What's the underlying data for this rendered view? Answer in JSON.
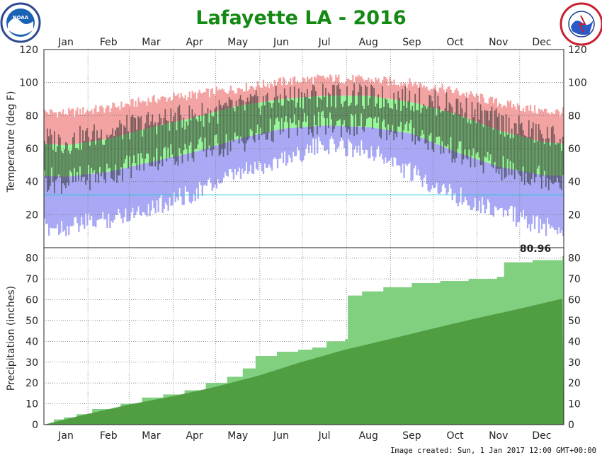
{
  "title": "Lafayette LA - 2016",
  "credit": "Image created: Sun, 1 Jan 2017 12:00 GMT+00:00",
  "logos": {
    "left": {
      "icon": "noaa-logo",
      "text": "NOAA"
    },
    "right": {
      "icon": "nws-logo",
      "text": "NATIONAL WEATHER SERVICE"
    }
  },
  "colors": {
    "record_high": "#f4a3a3",
    "normal_band": "#98f898",
    "record_low": "#a8a8f4",
    "actual": "#2e2e2e",
    "freezing_line": "#22c8d8",
    "obs_precip": "#80d080",
    "normal_precip": "#4e9a3e",
    "title": "#148a14"
  },
  "chart_data": [
    {
      "type": "bar",
      "name": "temperature",
      "ylabel": "Temperature (deg F)",
      "ylim": [
        0,
        120
      ],
      "yticks": [
        20,
        40,
        60,
        80,
        100,
        120
      ],
      "months": [
        "Jan",
        "Feb",
        "Mar",
        "Apr",
        "May",
        "Jun",
        "Jul",
        "Aug",
        "Sep",
        "Oct",
        "Nov",
        "Dec"
      ],
      "grid": true,
      "freezing_line": 32,
      "normal_high_monthly": [
        62,
        66,
        73,
        79,
        86,
        90,
        92,
        92,
        88,
        81,
        71,
        64
      ],
      "normal_low_monthly": [
        43,
        46,
        52,
        58,
        66,
        72,
        74,
        73,
        69,
        58,
        49,
        44
      ],
      "record_high_monthly": [
        81,
        84,
        89,
        92,
        96,
        100,
        102,
        101,
        99,
        94,
        87,
        82
      ],
      "record_low_monthly": [
        15,
        20,
        27,
        36,
        47,
        56,
        65,
        62,
        47,
        34,
        25,
        15
      ],
      "actual_high_monthly": [
        64,
        70,
        76,
        80,
        85,
        91,
        93,
        91,
        90,
        86,
        76,
        68
      ],
      "actual_low_monthly": [
        40,
        45,
        54,
        59,
        64,
        73,
        75,
        74,
        70,
        58,
        48,
        43
      ]
    },
    {
      "type": "area",
      "name": "precipitation",
      "ylabel": "Precipitation (inches)",
      "ylim": [
        0,
        85
      ],
      "yticks": [
        0,
        10,
        20,
        30,
        40,
        50,
        60,
        70,
        80
      ],
      "months": [
        "Jan",
        "Feb",
        "Mar",
        "Apr",
        "May",
        "Jun",
        "Jul",
        "Aug",
        "Sep",
        "Oct",
        "Nov",
        "Dec"
      ],
      "grid": true,
      "annotation": "80.96",
      "observed_cumulative": [
        [
          1,
          0
        ],
        [
          8,
          2.5
        ],
        [
          15,
          3.5
        ],
        [
          24,
          5
        ],
        [
          35,
          7.5
        ],
        [
          55,
          10
        ],
        [
          70,
          13
        ],
        [
          85,
          14.5
        ],
        [
          100,
          16.5
        ],
        [
          115,
          20
        ],
        [
          130,
          23
        ],
        [
          141,
          27
        ],
        [
          150,
          33
        ],
        [
          165,
          35
        ],
        [
          180,
          36
        ],
        [
          190,
          37
        ],
        [
          200,
          40
        ],
        [
          213,
          41
        ],
        [
          215,
          62
        ],
        [
          225,
          64
        ],
        [
          240,
          66
        ],
        [
          260,
          68
        ],
        [
          280,
          69
        ],
        [
          300,
          70
        ],
        [
          320,
          71
        ],
        [
          325,
          78
        ],
        [
          345,
          79
        ],
        [
          366,
          80.96
        ]
      ],
      "normal_cumulative": [
        [
          1,
          0
        ],
        [
          31,
          5
        ],
        [
          60,
          9.5
        ],
        [
          91,
          13.5
        ],
        [
          121,
          18
        ],
        [
          152,
          23.5
        ],
        [
          182,
          30
        ],
        [
          213,
          36
        ],
        [
          244,
          41
        ],
        [
          274,
          46
        ],
        [
          305,
          51
        ],
        [
          335,
          55.5
        ],
        [
          366,
          60.5
        ]
      ]
    }
  ]
}
